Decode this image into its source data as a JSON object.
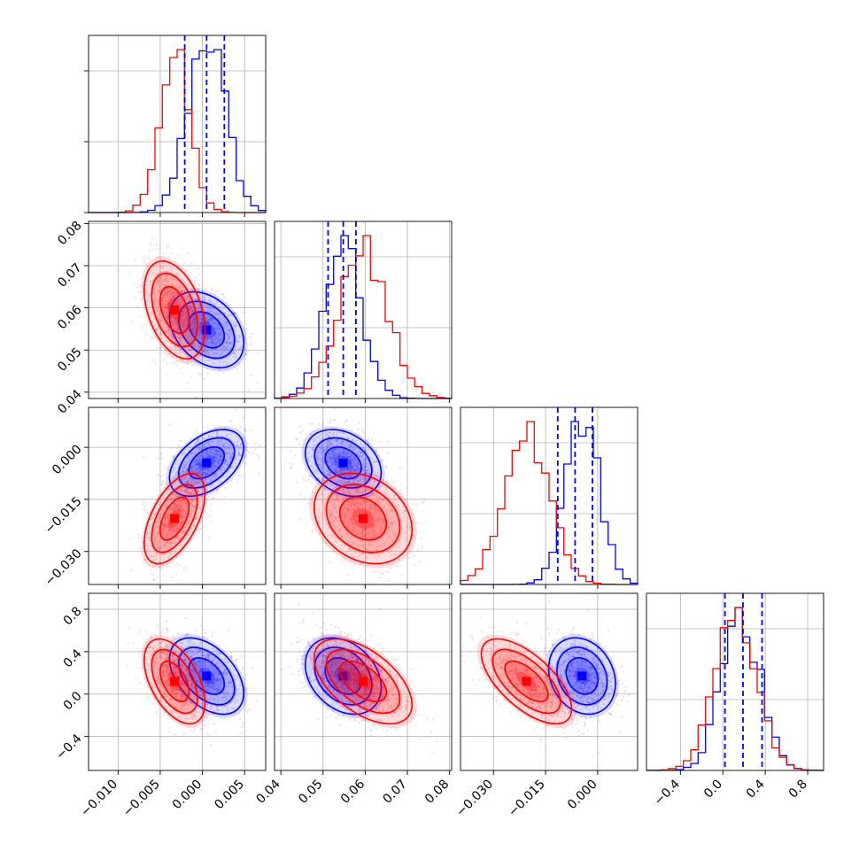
{
  "chart_data": {
    "type": "corner",
    "grid": true,
    "dimensions": [
      {
        "range": [
          -0.0135,
          0.0075
        ],
        "ticks": [
          "-0.010",
          "-0.005",
          "0.000",
          "0.005"
        ],
        "tick_values": [
          -0.01,
          -0.005,
          0.0,
          0.005
        ]
      },
      {
        "range": [
          0.0385,
          0.0805
        ],
        "ticks": [
          "0.04",
          "0.05",
          "0.06",
          "0.07",
          "0.08"
        ],
        "tick_values": [
          0.04,
          0.05,
          0.06,
          0.07,
          0.08
        ]
      },
      {
        "range": [
          -0.0395,
          0.0115
        ],
        "ticks": [
          "0.000",
          "-0.015",
          "-0.030"
        ],
        "tick_values": [
          0.0,
          -0.015,
          -0.03
        ]
      },
      {
        "range": [
          -0.72,
          0.95
        ],
        "ticks": [
          "0.8",
          "0.4",
          "0.0",
          "-0.4"
        ],
        "tick_values": [
          0.8,
          0.4,
          0.0,
          -0.4
        ]
      }
    ],
    "x_tick_labels": [
      [
        "-0.010",
        "-0.005",
        "0.000",
        "0.005"
      ],
      [
        "0.04",
        "0.05",
        "0.06",
        "0.07",
        "0.08"
      ],
      [
        "-0.030",
        "-0.015",
        "0.000"
      ],
      [
        "-0.4",
        "0.0",
        "0.4",
        "0.8"
      ]
    ],
    "y_tick_labels": {
      "row1": [
        "0.08",
        "0.07",
        "0.06",
        "0.05",
        "0.04"
      ],
      "row2": [
        "0.000",
        "-0.015",
        "-0.030"
      ],
      "row3": [
        "0.8",
        "0.4",
        "0.0",
        "-0.4"
      ]
    },
    "series": [
      {
        "color": "#0000ff",
        "mean": [
          0.0005,
          0.0548,
          -0.0045,
          0.17
        ],
        "std": [
          0.0022,
          0.0045,
          0.0048,
          0.18
        ],
        "quantiles": [
          [
            -0.0021,
            0.0005,
            0.0026
          ],
          [
            0.0512,
            0.0548,
            0.0578
          ],
          [
            -0.0115,
            -0.0065,
            -0.0015
          ],
          [
            0.02,
            0.19,
            0.37
          ]
        ],
        "corr": {
          "0-1": -0.35,
          "0-2": 0.45,
          "1-2": -0.3,
          "0-3": -0.45,
          "1-3": -0.3,
          "2-3": -0.2
        }
      },
      {
        "color": "#ff0000",
        "mean": [
          -0.0033,
          0.0595,
          -0.0205,
          0.12
        ],
        "std": [
          0.0018,
          0.0058,
          0.0065,
          0.2
        ],
        "corr": {
          "0-1": -0.4,
          "0-2": 0.55,
          "1-2": -0.25,
          "0-3": -0.5,
          "1-3": -0.55,
          "2-3": -0.65
        }
      }
    ]
  }
}
